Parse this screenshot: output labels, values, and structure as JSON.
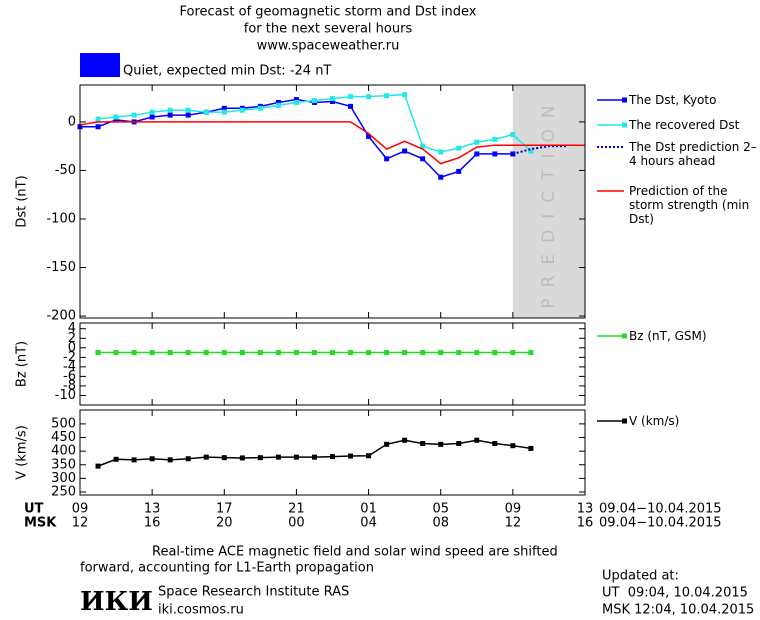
{
  "header": {
    "title_lines": [
      "Forecast of geomagnetic storm and Dst index",
      "for the next several hours",
      "www.spaceweather.ru"
    ],
    "status": "Quiet, expected min Dst: -24 nT",
    "status_color": "#0000ff"
  },
  "chart_data": [
    {
      "type": "line",
      "ylabel": "Dst (nT)",
      "xlim": [
        0,
        28
      ],
      "ylim": [
        -202,
        38
      ],
      "yticks": [
        0,
        -50,
        -100,
        -150,
        -200
      ],
      "prediction_region": [
        24,
        28
      ],
      "prediction_label": "PREDICTION",
      "prediction_color": "#d9d9d9",
      "series": [
        {
          "name": "The Dst, Kyoto",
          "color": "#0000ff",
          "marker": "square",
          "dash": "solid",
          "x": [
            0,
            1,
            2,
            3,
            4,
            5,
            6,
            7,
            8,
            9,
            10,
            11,
            12,
            13,
            14,
            15,
            16,
            17,
            18,
            19,
            20,
            21,
            22,
            23,
            24
          ],
          "values": [
            -5,
            -5,
            2,
            0,
            5,
            7,
            7,
            10,
            14,
            14,
            16,
            20,
            23,
            20,
            21,
            16,
            -15,
            -38,
            -30,
            -38,
            -57,
            -51,
            -33,
            -33,
            -33
          ]
        },
        {
          "name": "The recovered Dst",
          "color": "#22e8e8",
          "marker": "square",
          "dash": "solid",
          "x": [
            1,
            2,
            3,
            4,
            5,
            6,
            7,
            8,
            9,
            10,
            11,
            12,
            13,
            14,
            15,
            16,
            17,
            18,
            19,
            20,
            21,
            22,
            23,
            24,
            25
          ],
          "values": [
            3,
            5,
            7,
            10,
            12,
            12,
            10,
            10,
            12,
            14,
            17,
            20,
            22,
            24,
            26,
            26,
            27,
            28,
            -25,
            -31,
            -27,
            -21,
            -18,
            -13,
            -30
          ]
        },
        {
          "name": "The Dst prediction 2–4 hours ahead",
          "color": "#0000cc",
          "marker": "none",
          "dash": "dotted",
          "x": [
            24,
            25,
            26,
            27
          ],
          "values": [
            -33,
            -28,
            -25,
            -25
          ]
        },
        {
          "name": "Prediction of the storm strength (min Dst)",
          "color": "#ff0000",
          "marker": "none",
          "dash": "solid",
          "x": [
            0,
            1,
            15,
            16,
            17,
            18,
            19,
            20,
            21,
            22,
            23,
            28
          ],
          "values": [
            -3,
            0,
            0,
            -12,
            -28,
            -20,
            -28,
            -43,
            -37,
            -26,
            -24,
            -24
          ]
        }
      ]
    },
    {
      "type": "line",
      "ylabel": "Bz (nT)",
      "xlim": [
        0,
        28
      ],
      "ylim": [
        -12,
        5.2
      ],
      "yticks": [
        4,
        2,
        0,
        -2,
        -4,
        -6,
        -8,
        -10
      ],
      "series": [
        {
          "name": "Bz (nT, GSM)",
          "color": "#22dd22",
          "marker": "square",
          "dash": "solid",
          "x": [
            1,
            2,
            3,
            4,
            5,
            6,
            7,
            8,
            9,
            10,
            11,
            12,
            13,
            14,
            15,
            16,
            17,
            18,
            19,
            20,
            21,
            22,
            23,
            24,
            25
          ],
          "values": [
            -1,
            -1,
            -1,
            -1,
            -1,
            -1,
            -1,
            -1,
            -1,
            -1,
            -1,
            -1,
            -1,
            -1,
            -1,
            -1,
            -1,
            -1,
            -1,
            -1,
            -1,
            -1,
            -1,
            -1,
            -1
          ]
        }
      ]
    },
    {
      "type": "line",
      "ylabel": "V (km/s)",
      "xlim": [
        0,
        28
      ],
      "ylim": [
        239,
        551
      ],
      "yticks": [
        500,
        450,
        400,
        350,
        300,
        250
      ],
      "xticks": [
        {
          "value": 0,
          "label": "09"
        },
        {
          "value": 4,
          "label": "13"
        },
        {
          "value": 8,
          "label": "17"
        },
        {
          "value": 12,
          "label": "21"
        },
        {
          "value": 16,
          "label": "01"
        },
        {
          "value": 20,
          "label": "05"
        },
        {
          "value": 24,
          "label": "09"
        },
        {
          "value": 28,
          "label": "13"
        }
      ],
      "x2tick_labels": [
        "12",
        "16",
        "20",
        "00",
        "04",
        "08",
        "12",
        "16"
      ],
      "x_row_label": "UT",
      "x2_row_label": "MSK",
      "date_range": "09.04−10.04.2015",
      "series": [
        {
          "name": "V (km/s)",
          "color": "#000000",
          "marker": "square",
          "dash": "solid",
          "x": [
            1,
            2,
            3,
            4,
            5,
            6,
            7,
            8,
            9,
            10,
            11,
            12,
            13,
            14,
            15,
            16,
            17,
            18,
            19,
            20,
            21,
            22,
            23,
            24,
            25
          ],
          "values": [
            345,
            370,
            368,
            372,
            368,
            372,
            378,
            376,
            375,
            376,
            378,
            378,
            378,
            380,
            382,
            383,
            425,
            440,
            428,
            425,
            428,
            440,
            428,
            420,
            410
          ]
        }
      ]
    }
  ],
  "footer": {
    "note_lines": [
      "Real-time ACE magnetic field and solar wind speed are shifted",
      "forward, accounting for L1-Earth propagation"
    ],
    "logo": "ИКИ",
    "institute": "Space Research Institute RAS",
    "url": "iki.cosmos.ru",
    "updated_lines": [
      "Updated at:",
      "UT  09:04, 10.04.2015",
      "MSK 12:04, 10.04.2015"
    ]
  }
}
